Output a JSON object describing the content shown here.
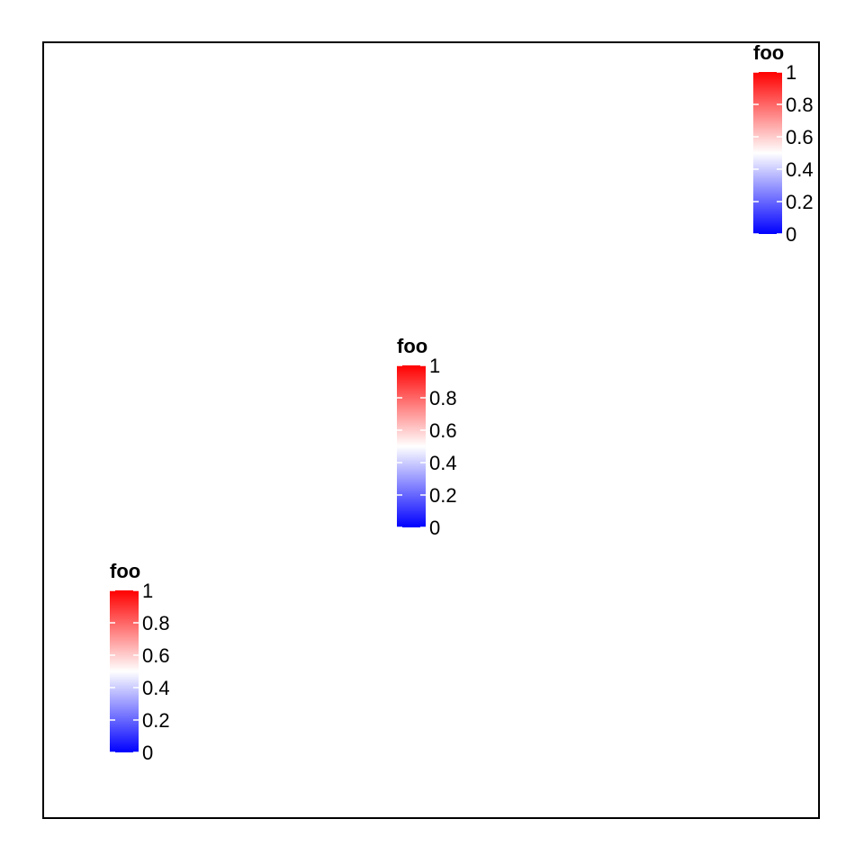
{
  "chart_data": {
    "type": "colorbar",
    "legends": [
      {
        "title": "foo",
        "corner": "top-right"
      },
      {
        "title": "foo",
        "corner": "center"
      },
      {
        "title": "foo",
        "corner": "bottom-left"
      }
    ],
    "scale": {
      "min": 0,
      "max": 1,
      "breaks": [
        0,
        0.2,
        0.4,
        0.6,
        0.8,
        1
      ],
      "break_labels": [
        "0",
        "0.2",
        "0.4",
        "0.6",
        "0.8",
        "1"
      ],
      "gradient": [
        {
          "value": 0,
          "color": "#0000ff"
        },
        {
          "value": 0.5,
          "color": "#ffffff"
        },
        {
          "value": 1,
          "color": "#ff0000"
        }
      ]
    }
  }
}
